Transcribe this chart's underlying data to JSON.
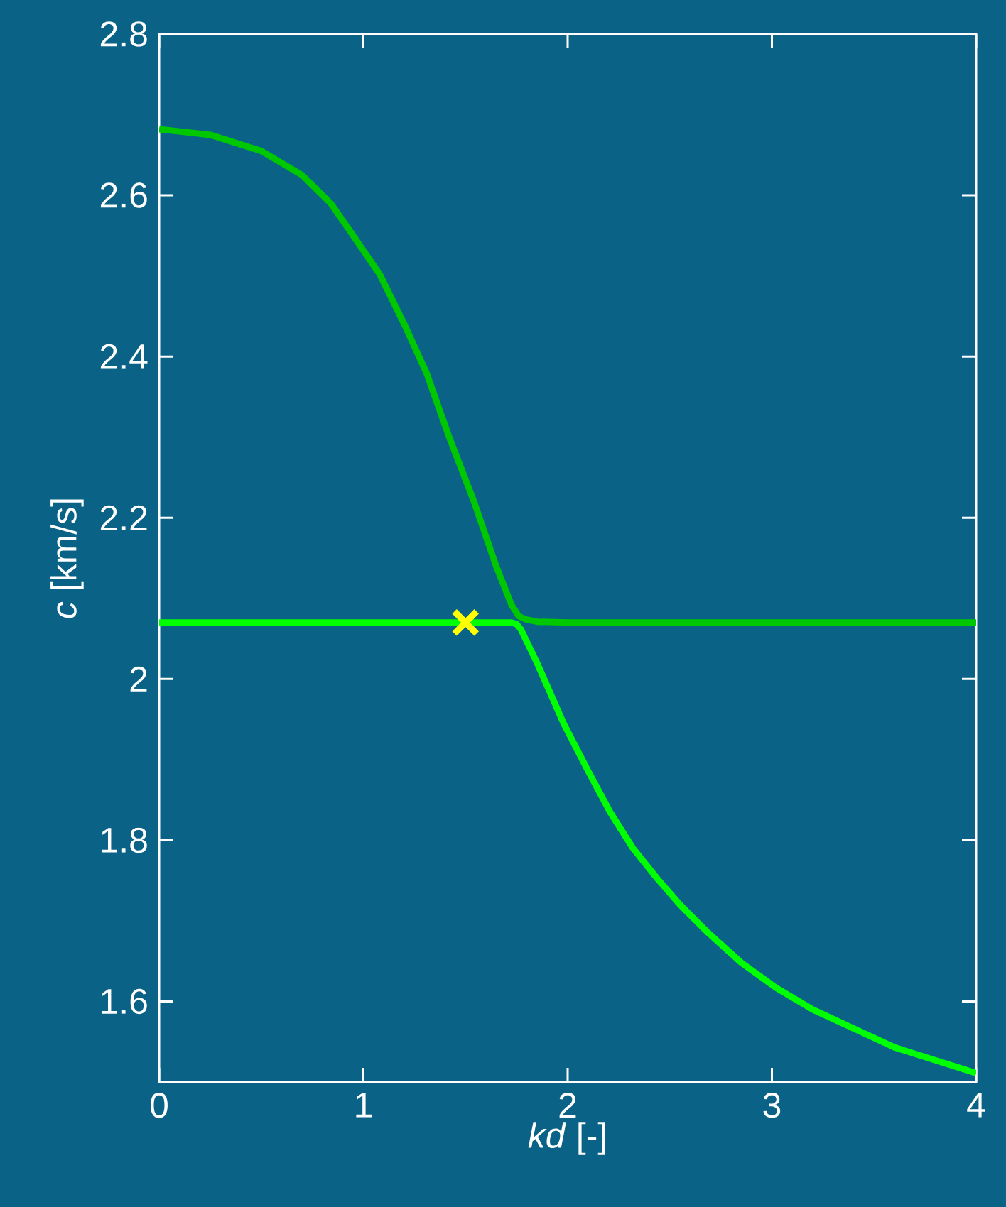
{
  "chart_data": {
    "type": "line",
    "xlabel": "*kd* [-]",
    "ylabel": "*c* [km/s]",
    "xlim": [
      0,
      4
    ],
    "ylim": [
      1.5,
      2.8
    ],
    "xticks": [
      0,
      1,
      2,
      3,
      4
    ],
    "yticks": [
      1.6,
      1.8,
      {
        "value": 2,
        "label": "2"
      },
      2.2,
      2.4,
      2.6,
      2.8
    ],
    "series": [
      {
        "color": "#00c800",
        "x": [
          0,
          0.25,
          0.5,
          0.7,
          0.84,
          0.95,
          1.08,
          1.2,
          1.31,
          1.42,
          1.54,
          1.65,
          1.725,
          1.76,
          1.795,
          1.85,
          2.0,
          3.0,
          4.0
        ],
        "values": [
          2.682,
          2.675,
          2.655,
          2.625,
          2.59,
          2.55,
          2.502,
          2.44,
          2.379,
          2.3,
          2.221,
          2.14,
          2.092,
          2.078,
          2.074,
          2.071,
          2.07,
          2.07,
          2.07
        ]
      },
      {
        "color": "#00ff00",
        "x": [
          0,
          1.0,
          1.725,
          1.75,
          1.77,
          1.85,
          1.98,
          2.1,
          2.21,
          2.32,
          2.44,
          2.55,
          2.68,
          2.85,
          3.02,
          3.2,
          3.37,
          3.6,
          4.0
        ],
        "values": [
          2.07,
          2.07,
          2.07,
          2.068,
          2.062,
          2.02,
          1.945,
          1.886,
          1.834,
          1.79,
          1.752,
          1.72,
          1.687,
          1.648,
          1.617,
          1.59,
          1.57,
          1.543,
          1.511
        ]
      },
      {
        "type": "scatter",
        "marker": "cross",
        "color": "#ffff00",
        "x": [
          1.5
        ],
        "values": [
          2.07
        ]
      }
    ]
  }
}
